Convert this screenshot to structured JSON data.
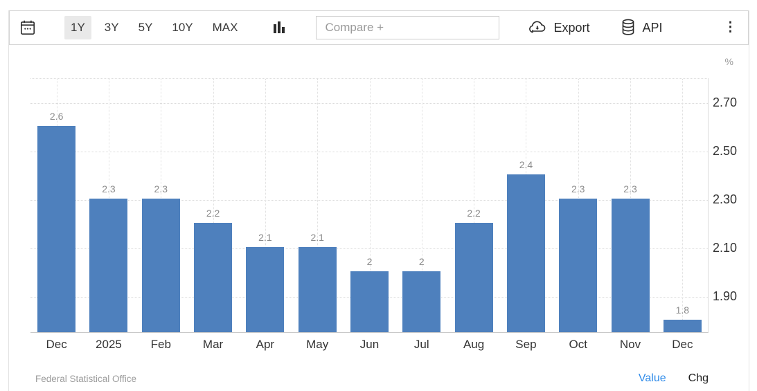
{
  "toolbar": {
    "ranges": [
      {
        "label": "1Y",
        "selected": true
      },
      {
        "label": "3Y",
        "selected": false
      },
      {
        "label": "5Y",
        "selected": false
      },
      {
        "label": "10Y",
        "selected": false
      },
      {
        "label": "MAX",
        "selected": false
      }
    ],
    "compare_placeholder": "Compare +",
    "export_label": "Export",
    "api_label": "API",
    "kebab_glyph": "⋮",
    "icons": [
      "calendar-icon",
      "bar-chart-type-icon",
      "cloud-download-icon",
      "database-icon",
      "kebab-menu-icon"
    ]
  },
  "chart_data": {
    "type": "bar",
    "categories": [
      "Dec",
      "2025",
      "Feb",
      "Mar",
      "Apr",
      "May",
      "Jun",
      "Jul",
      "Aug",
      "Sep",
      "Oct",
      "Nov",
      "Dec"
    ],
    "values": [
      2.6,
      2.3,
      2.3,
      2.2,
      2.1,
      2.1,
      2.0,
      2.0,
      2.2,
      2.4,
      2.3,
      2.3,
      1.8
    ],
    "value_labels": [
      "2.6",
      "2.3",
      "2.3",
      "2.2",
      "2.1",
      "2.1",
      "2",
      "2",
      "2.2",
      "2.4",
      "2.3",
      "2.3",
      "1.8"
    ],
    "title": "",
    "xlabel": "",
    "ylabel": "%",
    "ylim": [
      1.75,
      2.8
    ],
    "yticks": [
      2.7,
      2.5,
      2.3,
      2.1,
      1.9
    ],
    "ytick_labels": [
      "2.70",
      "2.50",
      "2.30",
      "2.10",
      "1.90"
    ],
    "grid": "dotted horizontal and vertical",
    "legend": "none",
    "bar_color": "#4e80bd",
    "value_label_color": "#8c8c8c"
  },
  "footer": {
    "source": "Federal Statistical Office",
    "value_label": "Value",
    "chg_label": "Chg"
  }
}
